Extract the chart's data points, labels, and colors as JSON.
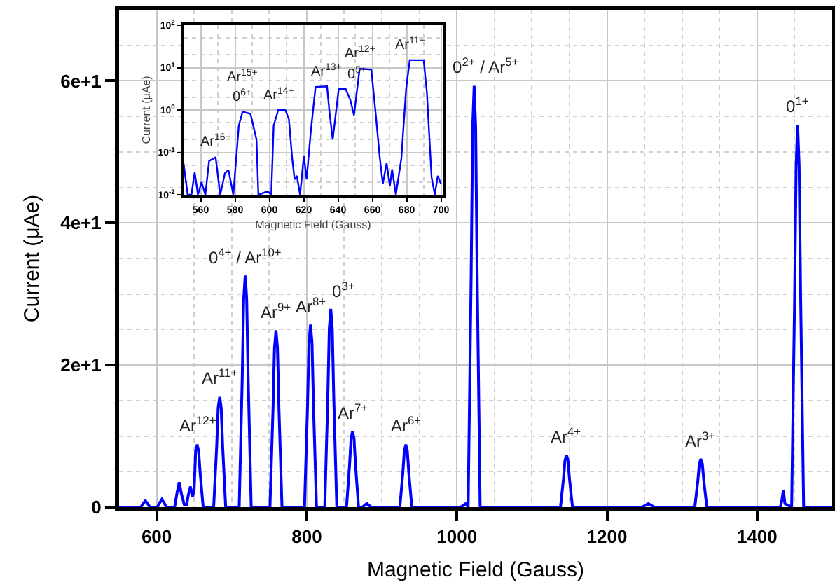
{
  "chart_data": [
    {
      "type": "line",
      "xlabel": "Magnetic Field (Gauss)",
      "ylabel": "Current (μAe)",
      "xlim": [
        550,
        1500
      ],
      "ylim": [
        0,
        70
      ],
      "xticks": [
        600,
        800,
        1000,
        1200,
        1400
      ],
      "yticks": [
        0,
        {
          "value": 20,
          "label": "2e+1"
        },
        {
          "value": 40,
          "label": "4e+1"
        },
        {
          "value": 60,
          "label": "6e+1"
        }
      ],
      "grid": true,
      "series": [
        {
          "color": "#0000ff",
          "x": [
            550,
            579,
            582,
            585,
            588,
            591,
            601,
            604,
            607,
            610,
            613,
            624,
            627,
            630,
            633,
            637,
            640,
            642,
            645,
            648,
            650,
            652,
            654,
            656,
            658,
            662,
            676,
            680,
            682,
            684,
            686,
            688,
            692,
            710,
            714,
            716,
            718,
            720,
            722,
            726,
            751,
            755,
            757,
            759,
            761,
            763,
            767,
            797,
            801,
            803,
            805,
            807,
            809,
            813,
            824,
            828,
            830,
            832,
            834,
            836,
            840,
            853,
            857,
            859,
            861,
            863,
            865,
            869,
            874,
            880,
            886,
            924,
            928,
            930,
            932,
            934,
            936,
            940,
            1005,
            1012,
            1015,
            1019,
            1021,
            1023,
            1025,
            1027,
            1031,
            1138,
            1142,
            1144,
            1146,
            1148,
            1150,
            1154,
            1247,
            1255,
            1263,
            1317,
            1321,
            1323,
            1325,
            1327,
            1329,
            1333,
            1431,
            1433,
            1435,
            1437,
            1446,
            1450,
            1452,
            1454,
            1456,
            1458,
            1462,
            1500
          ],
          "values": [
            0,
            0,
            0.5,
            0.9,
            0.5,
            0,
            0,
            0.6,
            1.1,
            0.6,
            0,
            0,
            1.9,
            3.5,
            1.9,
            0.3,
            0.3,
            1.6,
            2.9,
            1.5,
            2.5,
            7.9,
            8.8,
            7.9,
            4.8,
            0,
            0,
            8.5,
            14,
            15.5,
            14,
            8.5,
            0,
            0,
            17.9,
            29.3,
            32.6,
            29.3,
            17.9,
            0,
            0,
            13.7,
            22.4,
            24.9,
            22.4,
            13.7,
            0,
            0,
            14.1,
            23.1,
            25.7,
            23.1,
            14.1,
            0,
            0,
            15.3,
            25.1,
            27.9,
            25.1,
            15.3,
            0,
            0,
            5.9,
            9.6,
            10.7,
            9.6,
            5.9,
            0,
            0,
            0.5,
            0,
            0,
            4.8,
            7.9,
            8.8,
            7.9,
            4.8,
            0,
            0,
            0.5,
            0,
            32.6,
            53.4,
            59.3,
            53.4,
            32.6,
            0,
            0,
            4,
            6.6,
            7.3,
            6.6,
            4,
            0,
            0,
            0.5,
            0,
            0,
            3.7,
            6.1,
            6.8,
            6.1,
            3.7,
            0,
            0,
            1,
            2.4,
            0.5,
            0,
            29.6,
            48,
            53.8,
            48,
            29.6,
            0,
            0
          ]
        }
      ],
      "annotations": [
        {
          "text": "Ar$^{12+}$",
          "x": 654,
          "y": 8.8
        },
        {
          "text": "Ar$^{11+}$",
          "x": 684,
          "y": 15.5
        },
        {
          "text": "0$^{4+}$ / Ar$^{10+}$",
          "x": 718,
          "y": 32.6
        },
        {
          "text": "Ar$^{9+}$",
          "x": 759,
          "y": 24.9
        },
        {
          "text": "Ar$^{8+}$",
          "x": 805,
          "y": 25.7
        },
        {
          "text": "0$^{3+}$",
          "x": 832,
          "y": 27.9
        },
        {
          "text": "Ar$^{7+}$",
          "x": 861,
          "y": 10.7
        },
        {
          "text": "Ar$^{6+}$",
          "x": 932,
          "y": 8.8
        },
        {
          "text": "0$^{2+}$ / Ar$^{5+}$",
          "x": 1023,
          "y": 59.3
        },
        {
          "text": "Ar$^{4+}$",
          "x": 1146,
          "y": 7.3
        },
        {
          "text": "Ar$^{3+}$",
          "x": 1325,
          "y": 6.8
        },
        {
          "text": "0$^{1+}$",
          "x": 1454,
          "y": 53.8
        }
      ]
    },
    {
      "type": "line",
      "xlabel": "Magnetic Field (Gauss)",
      "ylabel": "Current (μAe)",
      "log": "y",
      "xlim": [
        550,
        701
      ],
      "ylim": [
        0.01,
        100
      ],
      "xticks": [
        560,
        580,
        600,
        620,
        640,
        660,
        680,
        700
      ],
      "yticks": [
        {
          "value": 0.01,
          "label": "10$^{-2}$"
        },
        {
          "value": 0.1,
          "label": "10$^{-1}$"
        },
        {
          "value": 1,
          "label": "10$^{0}$"
        },
        {
          "value": 10,
          "label": "10$^{1}$"
        },
        {
          "value": 100,
          "label": "10$^{2}$"
        }
      ],
      "grid": true,
      "series": [
        {
          "color": "#0000ff",
          "x": [
            550,
            552.4,
            554.6,
            556.5,
            558.4,
            560.5,
            562.7,
            564.9,
            568.7,
            571.4,
            574.1,
            576.2,
            579,
            582.2,
            584.4,
            589,
            592.5,
            593.6,
            599,
            601.1,
            602.5,
            605.2,
            609.3,
            611.4,
            613.3,
            614.7,
            616,
            617.9,
            620.1,
            621.7,
            624.2,
            626.9,
            633.6,
            635,
            636.9,
            638.5,
            640.4,
            644.5,
            647.2,
            649.3,
            651.2,
            652.6,
            659.4,
            662.1,
            664.2,
            666.1,
            668.3,
            670.2,
            671.5,
            673.7,
            676.9,
            679.7,
            681.8,
            689.9,
            691.8,
            694.5,
            696.4,
            698.1,
            700
          ],
          "values": [
            0.056,
            0.01,
            0.01,
            0.034,
            0.01,
            0.02,
            0.01,
            0.063,
            0.076,
            0.01,
            0.032,
            0.038,
            0.01,
            0.43,
            0.91,
            0.81,
            0.2,
            0.01,
            0.012,
            0.01,
            0.43,
            1,
            1,
            0.6,
            0.072,
            0.023,
            0.028,
            0.01,
            0.083,
            0.023,
            0.33,
            3.5,
            3.6,
            0.91,
            0.2,
            0.7,
            3.1,
            3.1,
            1.7,
            0.75,
            3.2,
            9.4,
            9,
            0.7,
            0.085,
            0.018,
            0.056,
            0.016,
            0.04,
            0.01,
            0.072,
            3.2,
            15,
            15,
            2.5,
            0.026,
            0.01,
            0.028,
            0.018
          ]
        }
      ],
      "annotations": [
        {
          "text": "Ar$^{16+}$",
          "x": 568.7,
          "y": 0.076
        },
        {
          "text": "0$^{6+}$",
          "x": 584.4,
          "y": 0.91
        },
        {
          "text": "Ar$^{15+}$",
          "x": 584.4,
          "y": 0.91
        },
        {
          "text": "Ar$^{14+}$",
          "x": 605.2,
          "y": 1
        },
        {
          "text": "Ar$^{13+}$",
          "x": 633.6,
          "y": 3.6
        },
        {
          "text": "0$^{5+}$",
          "x": 640.4,
          "y": 3.1
        },
        {
          "text": "Ar$^{12+}$",
          "x": 652.6,
          "y": 9.4
        },
        {
          "text": "Ar$^{11+}$",
          "x": 681.8,
          "y": 15
        }
      ]
    }
  ]
}
